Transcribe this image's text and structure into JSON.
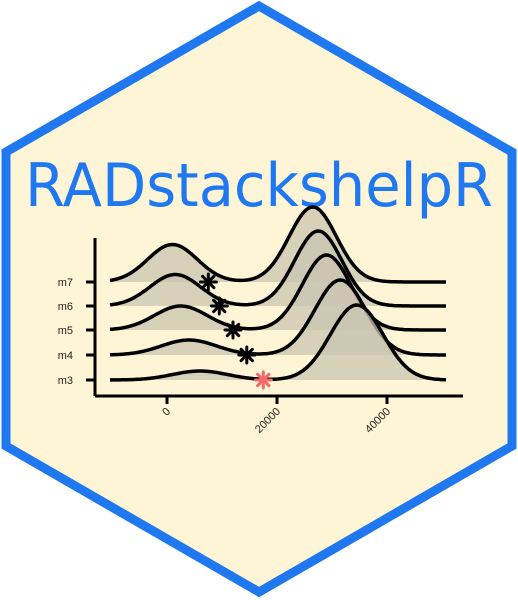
{
  "logo": {
    "title": "RADstackshelpR",
    "colors": {
      "border": "#1f78f0",
      "fill": "#fdf5d6",
      "title": "#1f78f0",
      "ridge_fill": "#c9c4b0",
      "ridge_line": "#000000",
      "marker": "#000000",
      "marker_highlight": "#f26a6a"
    }
  },
  "chart_data": {
    "type": "ridgeline",
    "categories": [
      "m3",
      "m4",
      "m5",
      "m6",
      "m7"
    ],
    "xlim": [
      -10000,
      52000
    ],
    "x_ticks": [
      0,
      20000,
      40000
    ],
    "x_tick_labels": [
      "0",
      "20000",
      "40000"
    ],
    "series": [
      {
        "category": "m3",
        "peaks": [
          {
            "mu": 6000,
            "sd": 5000,
            "h": 0.12
          },
          {
            "mu": 34500,
            "sd": 4800,
            "h": 1.0
          }
        ],
        "marker": 17500,
        "highlight": true
      },
      {
        "category": "m4",
        "peaks": [
          {
            "mu": 4000,
            "sd": 5000,
            "h": 0.2
          },
          {
            "mu": 31500,
            "sd": 4600,
            "h": 1.0
          }
        ],
        "marker": 14500,
        "highlight": false
      },
      {
        "category": "m5",
        "peaks": [
          {
            "mu": 2500,
            "sd": 4800,
            "h": 0.32
          },
          {
            "mu": 29000,
            "sd": 4400,
            "h": 1.0
          }
        ],
        "marker": 12000,
        "highlight": false
      },
      {
        "category": "m6",
        "peaks": [
          {
            "mu": 1500,
            "sd": 4600,
            "h": 0.42
          },
          {
            "mu": 27500,
            "sd": 4300,
            "h": 1.0
          }
        ],
        "marker": 9500,
        "highlight": false
      },
      {
        "category": "m7",
        "peaks": [
          {
            "mu": 1000,
            "sd": 4500,
            "h": 0.5
          },
          {
            "mu": 26500,
            "sd": 4300,
            "h": 1.0
          }
        ],
        "marker": 7500,
        "highlight": false
      }
    ],
    "marker_symbol": "✱"
  }
}
